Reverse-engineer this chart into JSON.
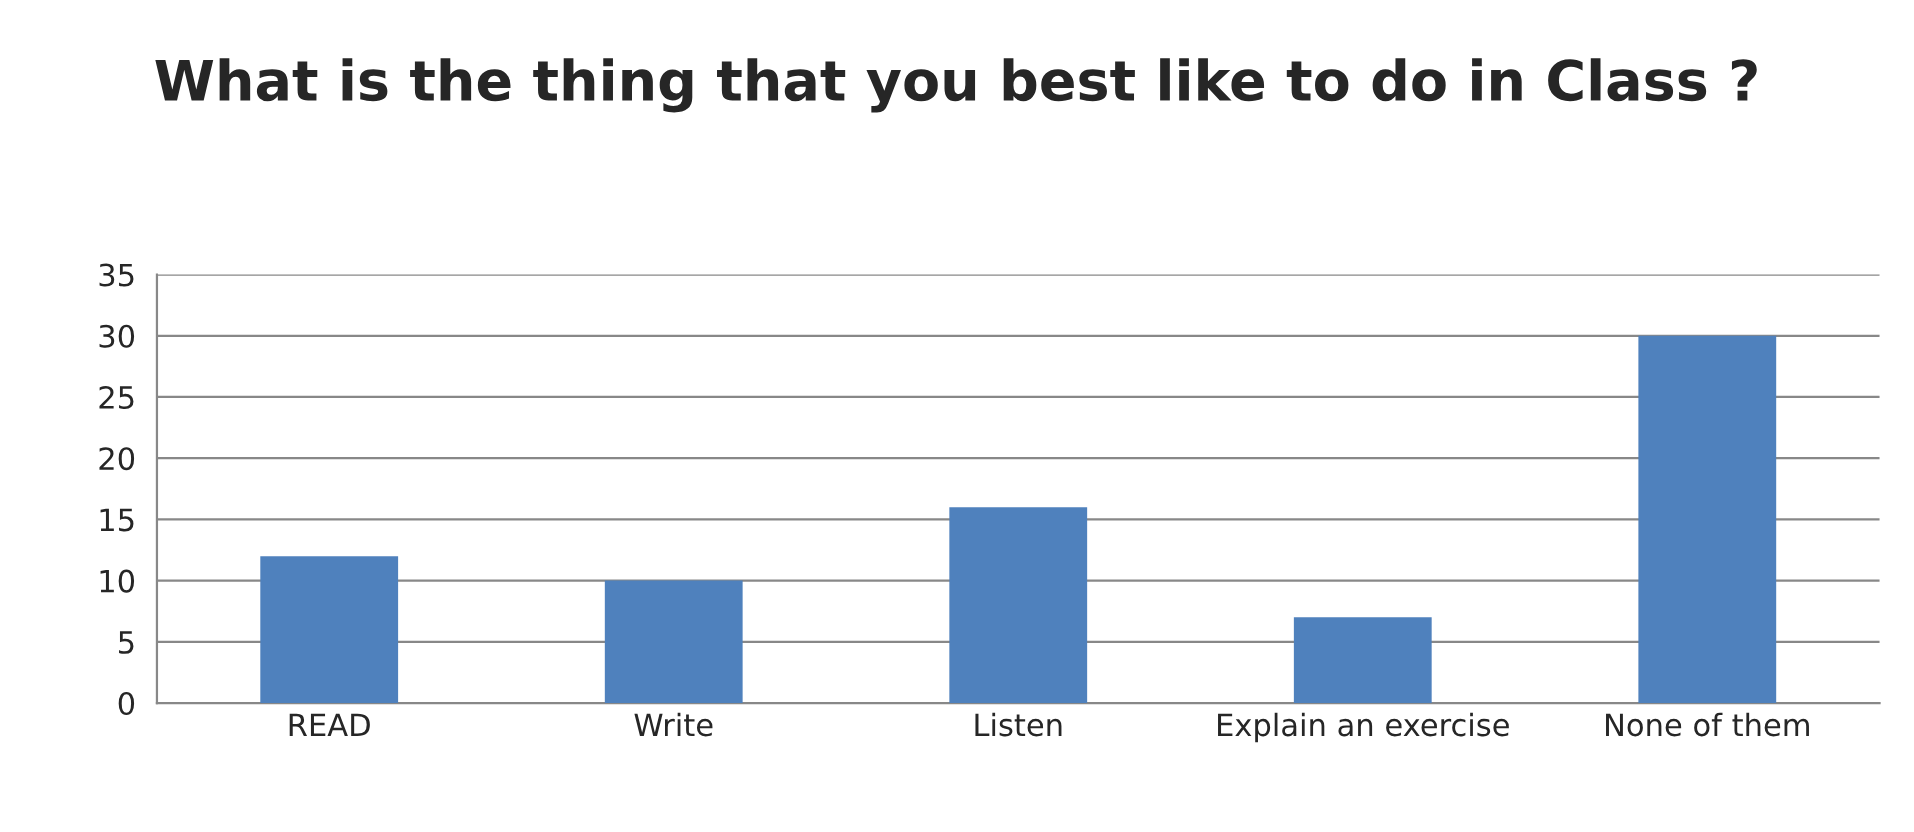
{
  "chart_data": {
    "type": "bar",
    "title": "What is the thing that you best like to do in Class ?",
    "categories": [
      "READ",
      "Write",
      "Listen",
      "Explain an exercise",
      "None of them"
    ],
    "values": [
      12,
      10,
      16,
      7,
      30
    ],
    "color": "#4f81bd",
    "ylim": [
      0,
      35
    ],
    "yticks": [
      0,
      5,
      10,
      15,
      20,
      25,
      30,
      35
    ],
    "grid": "y"
  }
}
